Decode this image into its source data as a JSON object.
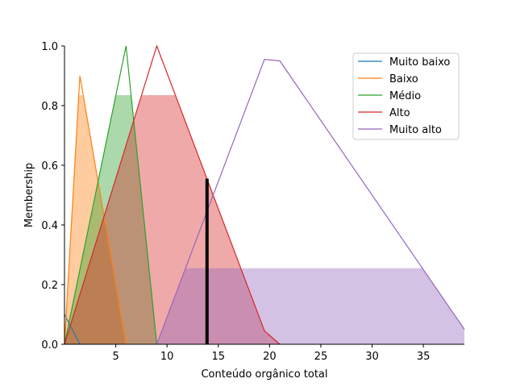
{
  "chart_data": {
    "type": "line",
    "xlabel": "Conteúdo orgânico total",
    "ylabel": "Membership",
    "xlim": [
      0,
      39
    ],
    "ylim": [
      0,
      1.0
    ],
    "x_ticks": [
      5,
      10,
      15,
      20,
      25,
      30,
      35
    ],
    "x_tick_labels": [
      "5",
      "10",
      "15",
      "20",
      "25",
      "30",
      "35"
    ],
    "y_ticks": [
      0.0,
      0.2,
      0.4,
      0.6,
      0.8,
      1.0
    ],
    "y_tick_labels": [
      "0.0",
      "0.2",
      "0.4",
      "0.6",
      "0.8",
      "1.0"
    ],
    "legend_position": "top-right",
    "series": [
      {
        "name": "Muito baixo",
        "color": "#1f77b4",
        "points": [
          [
            0,
            0.1
          ],
          [
            1.5,
            0
          ]
        ]
      },
      {
        "name": "Baixo",
        "color": "#ff7f0e",
        "points": [
          [
            0,
            0
          ],
          [
            1.5,
            0.9
          ],
          [
            6,
            0
          ]
        ]
      },
      {
        "name": "Médio",
        "color": "#2ca02c",
        "points": [
          [
            0,
            0
          ],
          [
            6,
            1.0
          ],
          [
            9,
            0
          ]
        ]
      },
      {
        "name": "Alto",
        "color": "#d62728",
        "points": [
          [
            0,
            0
          ],
          [
            9,
            1.0
          ],
          [
            19.5,
            0.045
          ],
          [
            21,
            0
          ]
        ]
      },
      {
        "name": "Muito alto",
        "color": "#9467bd",
        "points": [
          [
            9,
            0
          ],
          [
            19.5,
            0.955
          ],
          [
            21,
            0.95
          ],
          [
            39,
            0.05
          ]
        ]
      }
    ],
    "activations": [
      {
        "name": "Baixo",
        "color": "#ff7f0e",
        "level": 0.835
      },
      {
        "name": "Médio",
        "color": "#2ca02c",
        "level": 0.835
      },
      {
        "name": "Alto",
        "color": "#d62728",
        "level": 0.835
      },
      {
        "name": "Muito alto",
        "color": "#9467bd",
        "level": 0.255
      }
    ],
    "crisp_output": {
      "x": 13.9,
      "membership": 0.555
    }
  }
}
